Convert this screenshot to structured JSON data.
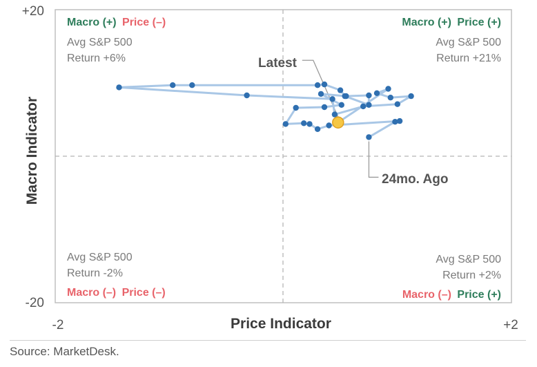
{
  "chart_data": {
    "type": "scatter",
    "title": "",
    "xlabel": "Price Indicator",
    "ylabel": "Macro Indicator",
    "xlim": [
      -2,
      2
    ],
    "ylim": [
      -20,
      20
    ],
    "x_tick_labels": [
      "-2",
      "+2"
    ],
    "y_tick_labels": [
      "+20",
      "-20"
    ],
    "grid": false,
    "connected": true,
    "colors": {
      "line": "#a9c7e6",
      "point": "#2f6fb0",
      "latest": "#f6c744",
      "latest_edge": "#e0a020",
      "positive": "#2e7d5b",
      "negative": "#e8636a",
      "frame": "#bfbfbf",
      "divider": "#b5b5b5"
    },
    "series": [
      {
        "points": [
          {
            "x": 0.75,
            "y": 2.6
          },
          {
            "x": 0.98,
            "y": 4.7
          },
          {
            "x": 1.02,
            "y": 4.8
          },
          {
            "x": 0.4,
            "y": 4.2
          },
          {
            "x": 0.3,
            "y": 3.7
          },
          {
            "x": 0.23,
            "y": 4.4
          },
          {
            "x": 0.18,
            "y": 4.5
          },
          {
            "x": 0.02,
            "y": 4.4
          },
          {
            "x": 0.11,
            "y": 6.6
          },
          {
            "x": 0.36,
            "y": 6.7
          },
          {
            "x": 0.51,
            "y": 7.0
          },
          {
            "x": 0.33,
            "y": 8.5
          },
          {
            "x": 0.55,
            "y": 8.2
          },
          {
            "x": 0.75,
            "y": 8.3
          },
          {
            "x": 0.75,
            "y": 7.0
          },
          {
            "x": 0.54,
            "y": 8.2
          },
          {
            "x": 0.5,
            "y": 9.0
          },
          {
            "x": 0.36,
            "y": 9.8
          },
          {
            "x": 0.3,
            "y": 9.7
          },
          {
            "x": -0.8,
            "y": 9.7
          },
          {
            "x": -0.97,
            "y": 9.7
          },
          {
            "x": -1.44,
            "y": 9.4
          },
          {
            "x": -0.32,
            "y": 8.3
          },
          {
            "x": 0.43,
            "y": 7.8
          },
          {
            "x": 0.45,
            "y": 5.7
          },
          {
            "x": 0.7,
            "y": 6.8
          },
          {
            "x": 1.0,
            "y": 7.1
          },
          {
            "x": 1.12,
            "y": 8.2
          },
          {
            "x": 0.94,
            "y": 8.0
          },
          {
            "x": 0.82,
            "y": 8.6
          },
          {
            "x": 0.92,
            "y": 9.2
          },
          {
            "x": 0.48,
            "y": 4.6
          }
        ],
        "latest_index": 31,
        "oldest_index": 0
      }
    ],
    "quadrants": {
      "top_left": {
        "macro_label": "Macro (+)",
        "price_label": "Price (–)",
        "return_line1": "Avg S&P 500",
        "return_line2": "Return +6%"
      },
      "top_right": {
        "macro_label": "Macro (+)",
        "price_label": "Price (+)",
        "return_line1": "Avg S&P 500",
        "return_line2": "Return +21%"
      },
      "bottom_left": {
        "macro_label": "Macro (–)",
        "price_label": "Price (–)",
        "return_line1": "Avg S&P 500",
        "return_line2": "Return -2%"
      },
      "bottom_right": {
        "macro_label": "Macro (–)",
        "price_label": "Price (+)",
        "return_line1": "Avg S&P 500",
        "return_line2": "Return +2%"
      }
    },
    "annotations": {
      "latest": "Latest",
      "oldest": "24mo. Ago"
    }
  },
  "source": "Source: MarketDesk."
}
